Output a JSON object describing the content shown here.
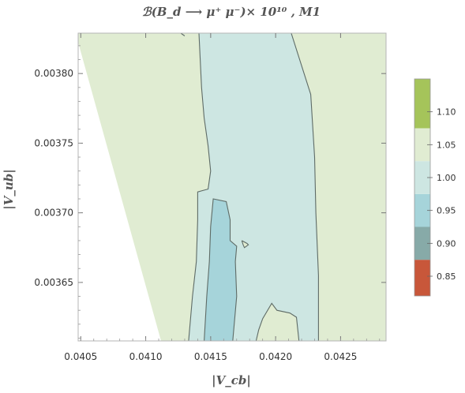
{
  "chart_data": {
    "type": "heatmap",
    "subtype": "contour",
    "title": "ℬ(B_d ⟶ μ⁺ μ⁻)× 10¹⁰ , M1",
    "xlabel": "|V_cb|",
    "ylabel": "|V_ub|",
    "xlim": [
      0.04048,
      0.04285
    ],
    "ylim": [
      0.003608,
      0.003829
    ],
    "x_ticks": [
      "0.0405",
      "0.0410",
      "0.0415",
      "0.0420",
      "0.0425"
    ],
    "x_tick_values": [
      0.0405,
      0.041,
      0.0415,
      0.042,
      0.0425
    ],
    "y_ticks": [
      "0.00365",
      "0.00370",
      "0.00375",
      "0.00380"
    ],
    "y_tick_values": [
      0.00365,
      0.0037,
      0.00375,
      0.0038
    ],
    "grid": false,
    "colorbar": {
      "range": [
        0.82,
        1.15
      ],
      "ticks": [
        "0.85",
        "0.90",
        "0.95",
        "1.00",
        "1.05",
        "1.10"
      ],
      "tick_values": [
        0.85,
        0.9,
        0.95,
        1.0,
        1.05,
        1.1
      ],
      "bands": [
        {
          "from": 0.82,
          "to": 0.875,
          "color": "#c8573a"
        },
        {
          "from": 0.875,
          "to": 0.925,
          "color": "#87aaa8"
        },
        {
          "from": 0.925,
          "to": 0.975,
          "color": "#a6d4da"
        },
        {
          "from": 0.975,
          "to": 1.025,
          "color": "#cde6e2"
        },
        {
          "from": 1.025,
          "to": 1.075,
          "color": "#e0ecd2"
        },
        {
          "from": 1.075,
          "to": 1.15,
          "color": "#a5c45a"
        }
      ]
    },
    "regions": [
      {
        "level": "1.00-1.05",
        "color": "#e0ecd2",
        "points": [
          [
            0.04048,
            0.003823
          ],
          [
            0.04048,
            0.003829
          ],
          [
            0.04285,
            0.003829
          ],
          [
            0.04285,
            0.003608
          ],
          [
            0.04112,
            0.003608
          ]
        ]
      },
      {
        "level": "0.95-1.00",
        "color": "#cde6e2",
        "points": [
          [
            0.04141,
            0.003829
          ],
          [
            0.04212,
            0.003829
          ],
          [
            0.04227,
            0.003785
          ],
          [
            0.0423,
            0.00374
          ],
          [
            0.04231,
            0.0037
          ],
          [
            0.04233,
            0.003655
          ],
          [
            0.04233,
            0.003608
          ],
          [
            0.04133,
            0.003608
          ],
          [
            0.04136,
            0.00364
          ],
          [
            0.04139,
            0.003665
          ],
          [
            0.0414,
            0.003695
          ],
          [
            0.0414,
            0.003715
          ],
          [
            0.04148,
            0.003717
          ],
          [
            0.0415,
            0.00373
          ],
          [
            0.04148,
            0.003748
          ],
          [
            0.04145,
            0.003768
          ],
          [
            0.04143,
            0.00379
          ]
        ]
      },
      {
        "level": "0.90-0.95",
        "color": "#a6d4da",
        "points": [
          [
            0.04152,
            0.00371
          ],
          [
            0.04162,
            0.003708
          ],
          [
            0.04165,
            0.003695
          ],
          [
            0.04165,
            0.00368
          ],
          [
            0.0417,
            0.003676
          ],
          [
            0.04169,
            0.003665
          ],
          [
            0.0417,
            0.00364
          ],
          [
            0.04167,
            0.003608
          ],
          [
            0.04145,
            0.003608
          ],
          [
            0.04147,
            0.00364
          ],
          [
            0.04149,
            0.003665
          ],
          [
            0.0415,
            0.00369
          ]
        ]
      },
      {
        "level": "1.00-1.05",
        "color": "#e0ecd2",
        "points": [
          [
            0.04185,
            0.003608
          ],
          [
            0.04218,
            0.003608
          ],
          [
            0.04216,
            0.003625
          ],
          [
            0.04211,
            0.003628
          ],
          [
            0.04201,
            0.00363
          ],
          [
            0.04197,
            0.003635
          ],
          [
            0.0419,
            0.003624
          ],
          [
            0.04187,
            0.003616
          ]
        ]
      },
      {
        "level": "1.00-1.05",
        "color": "#e0ecd2",
        "points": [
          [
            0.04174,
            0.00368
          ],
          [
            0.04178,
            0.003678
          ],
          [
            0.04179,
            0.003677
          ],
          [
            0.04176,
            0.003675
          ],
          [
            0.04175,
            0.003677
          ]
        ]
      }
    ],
    "contour_lines": [
      {
        "level": 1.0,
        "points": [
          [
            0.04141,
            0.003829
          ],
          [
            0.04143,
            0.00379
          ],
          [
            0.04145,
            0.003768
          ],
          [
            0.04148,
            0.003748
          ],
          [
            0.0415,
            0.00373
          ],
          [
            0.04148,
            0.003717
          ],
          [
            0.0414,
            0.003715
          ],
          [
            0.0414,
            0.003695
          ],
          [
            0.04139,
            0.003665
          ],
          [
            0.04136,
            0.00364
          ],
          [
            0.04133,
            0.003608
          ]
        ]
      },
      {
        "level": 1.0,
        "points": [
          [
            0.04212,
            0.003829
          ],
          [
            0.04227,
            0.003785
          ],
          [
            0.0423,
            0.00374
          ],
          [
            0.04231,
            0.0037
          ],
          [
            0.04233,
            0.003655
          ],
          [
            0.04233,
            0.003608
          ]
        ]
      },
      {
        "level": 0.95,
        "points": [
          [
            0.04145,
            0.003608
          ],
          [
            0.04147,
            0.00364
          ],
          [
            0.04149,
            0.003665
          ],
          [
            0.0415,
            0.00369
          ],
          [
            0.04152,
            0.00371
          ],
          [
            0.04162,
            0.003708
          ],
          [
            0.04165,
            0.003695
          ],
          [
            0.04165,
            0.00368
          ],
          [
            0.0417,
            0.003676
          ],
          [
            0.04169,
            0.003665
          ],
          [
            0.0417,
            0.00364
          ],
          [
            0.04167,
            0.003608
          ]
        ]
      },
      {
        "level": 1.0,
        "points": [
          [
            0.04185,
            0.003608
          ],
          [
            0.04187,
            0.003616
          ],
          [
            0.0419,
            0.003624
          ],
          [
            0.04197,
            0.003635
          ],
          [
            0.04201,
            0.00363
          ],
          [
            0.04211,
            0.003628
          ],
          [
            0.04216,
            0.003625
          ],
          [
            0.04218,
            0.003608
          ]
        ]
      },
      {
        "level": 1.0,
        "points": [
          [
            0.04174,
            0.00368
          ],
          [
            0.04178,
            0.003678
          ],
          [
            0.04179,
            0.003677
          ],
          [
            0.04176,
            0.003675
          ],
          [
            0.04175,
            0.003677
          ],
          [
            0.04174,
            0.00368
          ]
        ]
      },
      {
        "level": 1.0,
        "points": [
          [
            0.04127,
            0.003829
          ],
          [
            0.0413,
            0.003827
          ]
        ]
      }
    ]
  }
}
